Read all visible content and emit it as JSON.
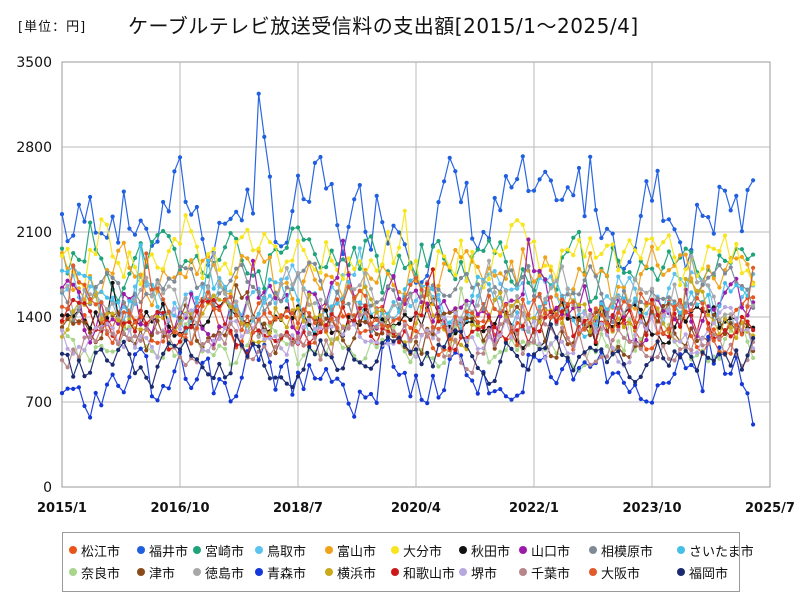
{
  "title": {
    "unit": "[単位：円]",
    "main": "ケーブルテレビ放送受信料の支出額[2015/1～2025/4]"
  },
  "chart_data": {
    "type": "line",
    "title": "ケーブルテレビ放送受信料の支出額[2015/1～2025/4]",
    "unit_label": "[単位：円]",
    "ylim": [
      0,
      3500
    ],
    "yticks": [
      "0",
      "700",
      "1400",
      "2100",
      "2800",
      "3500"
    ],
    "xticks": [
      "2015/1",
      "2016/10",
      "2018/7",
      "2020/4",
      "2022/1",
      "2023/10",
      "2025/7"
    ],
    "x_start": "2015/1",
    "x_end": "2025/7",
    "frequency": "monthly",
    "grid": true,
    "legend_position": "bottom",
    "series": [
      {
        "name": "松江市",
        "color": "#e8541a",
        "base": 1350,
        "amp": 250,
        "noise": 200,
        "seed": 3
      },
      {
        "name": "福井市",
        "color": "#1f5fe0",
        "base": 2250,
        "amp": 300,
        "noise": 550,
        "seed": 7
      },
      {
        "name": "宮崎市",
        "color": "#1fa37a",
        "base": 1850,
        "amp": 200,
        "noise": 320,
        "seed": 11
      },
      {
        "name": "鳥取市",
        "color": "#5cc2f0",
        "base": 1550,
        "amp": 200,
        "noise": 260,
        "seed": 13
      },
      {
        "name": "富山市",
        "color": "#f0a21a",
        "base": 1750,
        "amp": 250,
        "noise": 300,
        "seed": 17
      },
      {
        "name": "大分市",
        "color": "#f7e51e",
        "base": 1900,
        "amp": 250,
        "noise": 330,
        "seed": 19
      },
      {
        "name": "秋田市",
        "color": "#111111",
        "base": 1350,
        "amp": 200,
        "noise": 200,
        "seed": 23
      },
      {
        "name": "山口市",
        "color": "#9c1aa8",
        "base": 1450,
        "amp": 250,
        "noise": 300,
        "seed": 29
      },
      {
        "name": "相模原市",
        "color": "#7f8a96",
        "base": 1600,
        "amp": 250,
        "noise": 250,
        "seed": 31
      },
      {
        "name": "さいたま市",
        "color": "#46bfe8",
        "base": 1500,
        "amp": 250,
        "noise": 250,
        "seed": 37
      },
      {
        "name": "奈良市",
        "color": "#a8d68c",
        "base": 1150,
        "amp": 200,
        "noise": 230,
        "seed": 41
      },
      {
        "name": "津市",
        "color": "#8a4a1a",
        "base": 1300,
        "amp": 250,
        "noise": 240,
        "seed": 43
      },
      {
        "name": "徳島市",
        "color": "#a8a8a8",
        "base": 1500,
        "amp": 250,
        "noise": 300,
        "seed": 47
      },
      {
        "name": "青森市",
        "color": "#1438d8",
        "base": 900,
        "amp": 250,
        "noise": 320,
        "seed": 53
      },
      {
        "name": "横浜市",
        "color": "#c9aa1a",
        "base": 1400,
        "amp": 200,
        "noise": 240,
        "seed": 59
      },
      {
        "name": "和歌山市",
        "color": "#cc1a1a",
        "base": 1300,
        "amp": 200,
        "noise": 240,
        "seed": 61
      },
      {
        "name": "堺市",
        "color": "#b8a8e0",
        "base": 1250,
        "amp": 200,
        "noise": 230,
        "seed": 67
      },
      {
        "name": "千葉市",
        "color": "#b8868a",
        "base": 1200,
        "amp": 200,
        "noise": 240,
        "seed": 71
      },
      {
        "name": "大阪市",
        "color": "#e05a2a",
        "base": 1400,
        "amp": 250,
        "noise": 260,
        "seed": 73
      },
      {
        "name": "福岡市",
        "color": "#1a2a6e",
        "base": 1050,
        "amp": 200,
        "noise": 220,
        "seed": 79
      }
    ]
  }
}
